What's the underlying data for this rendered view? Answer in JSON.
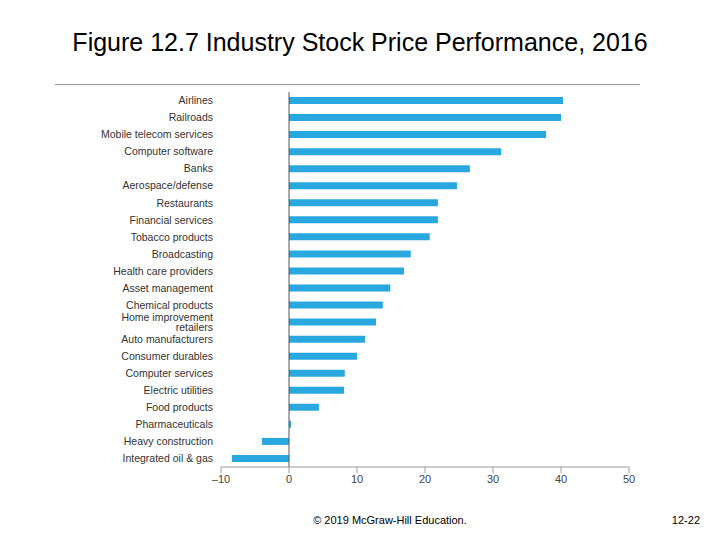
{
  "chart_data": {
    "type": "bar",
    "orientation": "horizontal",
    "title": "Figure 12.7 Industry Stock Price Performance, 2016",
    "categories": [
      "Airlines",
      "Railroads",
      "Mobile telecom services",
      "Computer software",
      "Banks",
      "Aerospace/defense",
      "Restaurants",
      "Financial services",
      "Tobacco products",
      "Broadcasting",
      "Health care providers",
      "Asset management",
      "Chemical products",
      "Home improvement retailers",
      "Auto manufacturers",
      "Consumer durables",
      "Computer services",
      "Electric utilities",
      "Food products",
      "Pharmaceuticals",
      "Heavy construction",
      "Integrated oil & gas"
    ],
    "values": [
      40.3,
      40,
      37.8,
      31.2,
      26.6,
      24.7,
      21.9,
      21.9,
      20.7,
      17.9,
      16.9,
      14.9,
      13.8,
      12.8,
      11.2,
      10,
      8.2,
      8.1,
      4.4,
      0.3,
      -4,
      -8.4
    ],
    "color": "#29a8e0",
    "xlim": [
      -10,
      50
    ],
    "xticks": [
      {
        "value": -10,
        "label": "–10"
      },
      0,
      10,
      20,
      30,
      40,
      50
    ],
    "grid": false
  },
  "footer": {
    "copyright": "© 2019 McGraw-Hill Education.",
    "page": "12-22"
  }
}
